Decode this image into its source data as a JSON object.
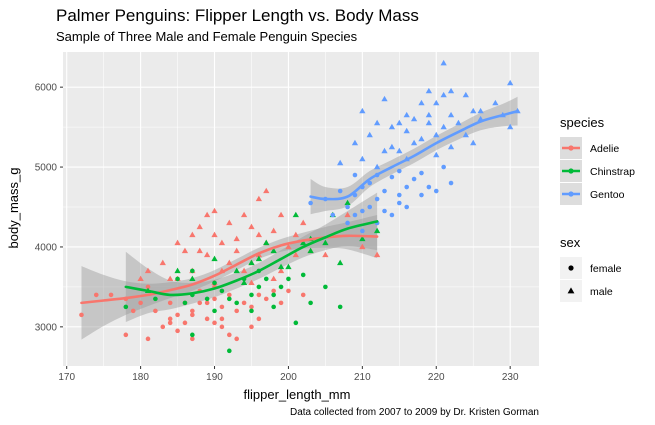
{
  "chart_data": {
    "type": "scatter",
    "title": "Palmer Penguins: Flipper Length vs. Body Mass",
    "subtitle": "Sample of Three Male and Female Penguin Species",
    "caption": "Data collected from 2007 to 2009 by Dr. Kristen Gorman",
    "xlabel": "flipper_length_mm",
    "ylabel": "body_mass_g",
    "xlim": [
      169.5,
      233.9
    ],
    "ylim": [
      2510,
      6440
    ],
    "xticks": [
      170,
      180,
      190,
      200,
      210,
      220,
      230
    ],
    "yticks": [
      3000,
      4000,
      5000,
      6000
    ],
    "grid": true,
    "legend_position": "right",
    "legend_species_title": "species",
    "legend_sex_title": "sex",
    "series": [
      {
        "name": "Adelie",
        "color": "#F8766D",
        "female": [
          [
            172,
            3150
          ],
          [
            174,
            3400
          ],
          [
            176,
            3400
          ],
          [
            178,
            2900
          ],
          [
            179,
            3200
          ],
          [
            180,
            3300
          ],
          [
            181,
            2850
          ],
          [
            181,
            3500
          ],
          [
            182,
            3200
          ],
          [
            183,
            3000
          ],
          [
            184,
            3300
          ],
          [
            184,
            3100
          ],
          [
            185,
            2950
          ],
          [
            185,
            3150
          ],
          [
            186,
            3050
          ],
          [
            186,
            3300
          ],
          [
            187,
            3150
          ],
          [
            187,
            2850
          ],
          [
            188,
            3300
          ],
          [
            188,
            3450
          ],
          [
            189,
            3100
          ],
          [
            189,
            3300
          ],
          [
            190,
            3350
          ],
          [
            190,
            3050
          ],
          [
            190,
            3500
          ],
          [
            191,
            3100
          ],
          [
            191,
            3250
          ],
          [
            192,
            2900
          ],
          [
            192,
            3400
          ],
          [
            193,
            3200
          ],
          [
            193,
            2850
          ],
          [
            194,
            3300
          ],
          [
            195,
            3000
          ],
          [
            195,
            3250
          ],
          [
            196,
            3100
          ],
          [
            196,
            3400
          ],
          [
            197,
            3350
          ],
          [
            198,
            3450
          ],
          [
            199,
            3300
          ],
          [
            200,
            3450
          ],
          [
            202,
            3400
          ],
          [
            178,
            3350
          ],
          [
            184,
            3050
          ],
          [
            187,
            3200
          ],
          [
            191,
            3000
          ]
        ],
        "male": [
          [
            180,
            3600
          ],
          [
            181,
            3700
          ],
          [
            183,
            3800
          ],
          [
            184,
            3600
          ],
          [
            185,
            4050
          ],
          [
            186,
            3950
          ],
          [
            187,
            4150
          ],
          [
            187,
            3700
          ],
          [
            188,
            3950
          ],
          [
            189,
            4400
          ],
          [
            189,
            3900
          ],
          [
            190,
            4150
          ],
          [
            190,
            3550
          ],
          [
            190,
            4450
          ],
          [
            191,
            4050
          ],
          [
            191,
            3700
          ],
          [
            192,
            3800
          ],
          [
            192,
            4300
          ],
          [
            193,
            3950
          ],
          [
            193,
            4100
          ],
          [
            194,
            3700
          ],
          [
            194,
            4400
          ],
          [
            195,
            3800
          ],
          [
            195,
            4250
          ],
          [
            196,
            4600
          ],
          [
            196,
            3900
          ],
          [
            196,
            4150
          ],
          [
            197,
            4700
          ],
          [
            197,
            4050
          ],
          [
            198,
            4200
          ],
          [
            198,
            3600
          ],
          [
            199,
            4400
          ],
          [
            199,
            3700
          ],
          [
            200,
            4000
          ],
          [
            201,
            4150
          ],
          [
            201,
            3900
          ],
          [
            202,
            4300
          ],
          [
            203,
            3950
          ],
          [
            205,
            3900
          ],
          [
            208,
            4400
          ],
          [
            210,
            4000
          ],
          [
            212,
            3900
          ],
          [
            185,
            3600
          ],
          [
            188,
            4250
          ],
          [
            195,
            3550
          ]
        ]
      },
      {
        "name": "Chinstrap",
        "color": "#00BA38",
        "female": [
          [
            178,
            3250
          ],
          [
            182,
            3350
          ],
          [
            185,
            3600
          ],
          [
            186,
            3300
          ],
          [
            187,
            2900
          ],
          [
            187,
            3400
          ],
          [
            189,
            3350
          ],
          [
            190,
            3200
          ],
          [
            190,
            3550
          ],
          [
            191,
            3450
          ],
          [
            192,
            2700
          ],
          [
            192,
            3350
          ],
          [
            193,
            3300
          ],
          [
            194,
            3600
          ],
          [
            195,
            3400
          ],
          [
            196,
            3500
          ],
          [
            196,
            3700
          ],
          [
            197,
            3600
          ],
          [
            198,
            3250
          ],
          [
            198,
            3400
          ],
          [
            199,
            3500
          ],
          [
            200,
            3600
          ],
          [
            201,
            3050
          ],
          [
            202,
            3650
          ],
          [
            203,
            3300
          ],
          [
            205,
            3500
          ],
          [
            207,
            3250
          ],
          [
            187,
            3700
          ],
          [
            195,
            3200
          ]
        ],
        "male": [
          [
            181,
            3450
          ],
          [
            185,
            3700
          ],
          [
            187,
            3600
          ],
          [
            190,
            3850
          ],
          [
            193,
            3700
          ],
          [
            194,
            3550
          ],
          [
            195,
            3800
          ],
          [
            196,
            3850
          ],
          [
            197,
            4050
          ],
          [
            198,
            3950
          ],
          [
            199,
            3750
          ],
          [
            200,
            3750
          ],
          [
            201,
            4400
          ],
          [
            202,
            4050
          ],
          [
            203,
            3950
          ],
          [
            205,
            4050
          ],
          [
            207,
            3800
          ],
          [
            210,
            4100
          ],
          [
            212,
            4200
          ],
          [
            203,
            4100
          ],
          [
            208,
            4550
          ],
          [
            206,
            4400
          ]
        ]
      },
      {
        "name": "Gentoo",
        "color": "#619CFF",
        "female": [
          [
            203,
            4550
          ],
          [
            205,
            4600
          ],
          [
            206,
            4400
          ],
          [
            207,
            4700
          ],
          [
            208,
            4500
          ],
          [
            208,
            4300
          ],
          [
            209,
            4400
          ],
          [
            209,
            4650
          ],
          [
            210,
            4200
          ],
          [
            210,
            4450
          ],
          [
            210,
            4750
          ],
          [
            211,
            4500
          ],
          [
            211,
            4800
          ],
          [
            212,
            4300
          ],
          [
            212,
            4600
          ],
          [
            213,
            4700
          ],
          [
            213,
            4450
          ],
          [
            214,
            4400
          ],
          [
            214,
            4875
          ],
          [
            215,
            4650
          ],
          [
            215,
            4550
          ],
          [
            216,
            4750
          ],
          [
            216,
            4500
          ],
          [
            217,
            4850
          ],
          [
            218,
            4925
          ],
          [
            218,
            4650
          ],
          [
            219,
            4750
          ],
          [
            220,
            4700
          ],
          [
            221,
            5000
          ],
          [
            222,
            4800
          ],
          [
            212,
            4900
          ],
          [
            209,
            4900
          ],
          [
            215,
            4950
          ]
        ],
        "male": [
          [
            209,
            5300
          ],
          [
            210,
            5700
          ],
          [
            210,
            5100
          ],
          [
            211,
            5400
          ],
          [
            212,
            5000
          ],
          [
            212,
            5550
          ],
          [
            213,
            5850
          ],
          [
            214,
            5500
          ],
          [
            214,
            5250
          ],
          [
            215,
            5200
          ],
          [
            215,
            5550
          ],
          [
            216,
            5450
          ],
          [
            216,
            5100
          ],
          [
            217,
            5600
          ],
          [
            217,
            5300
          ],
          [
            218,
            5800
          ],
          [
            218,
            5350
          ],
          [
            219,
            5550
          ],
          [
            219,
            5650
          ],
          [
            220,
            5400
          ],
          [
            220,
            5150
          ],
          [
            220,
            5800
          ],
          [
            221,
            6300
          ],
          [
            221,
            5500
          ],
          [
            222,
            5250
          ],
          [
            222,
            5650
          ],
          [
            223,
            5550
          ],
          [
            224,
            5400
          ],
          [
            225,
            5700
          ],
          [
            225,
            5300
          ],
          [
            226,
            5600
          ],
          [
            228,
            5800
          ],
          [
            229,
            5650
          ],
          [
            230,
            6050
          ],
          [
            230,
            5500
          ],
          [
            231,
            5700
          ],
          [
            207,
            5050
          ],
          [
            213,
            5200
          ],
          [
            216,
            5650
          ],
          [
            219,
            5950
          ],
          [
            221,
            5900
          ],
          [
            222,
            5950
          ],
          [
            224,
            5900
          ],
          [
            226,
            5700
          ]
        ]
      }
    ],
    "smooth": [
      {
        "name": "Adelie",
        "color": "#F8766D",
        "x": [
          172,
          175,
          178,
          181,
          184,
          187,
          190,
          193,
          196,
          199,
          202,
          205,
          208,
          212
        ],
        "y": [
          3300,
          3330,
          3360,
          3400,
          3460,
          3530,
          3640,
          3780,
          3920,
          4020,
          4080,
          4120,
          4140,
          4130
        ],
        "se": [
          460,
          320,
          210,
          140,
          100,
          80,
          70,
          70,
          70,
          80,
          100,
          130,
          170,
          270
        ]
      },
      {
        "name": "Chinstrap",
        "color": "#00BA38",
        "x": [
          178,
          181,
          184,
          187,
          190,
          193,
          196,
          199,
          202,
          205,
          208,
          212
        ],
        "y": [
          3500,
          3450,
          3400,
          3420,
          3480,
          3580,
          3700,
          3850,
          4000,
          4120,
          4230,
          4320
        ],
        "se": [
          440,
          280,
          180,
          130,
          110,
          100,
          100,
          110,
          130,
          160,
          220,
          360
        ]
      },
      {
        "name": "Gentoo",
        "color": "#619CFF",
        "x": [
          203,
          205,
          208,
          211,
          214,
          217,
          220,
          223,
          226,
          229,
          231
        ],
        "y": [
          4630,
          4600,
          4630,
          4850,
          5000,
          5140,
          5300,
          5440,
          5570,
          5650,
          5700
        ],
        "se": [
          220,
          150,
          120,
          100,
          90,
          90,
          90,
          95,
          110,
          140,
          180
        ]
      }
    ]
  }
}
